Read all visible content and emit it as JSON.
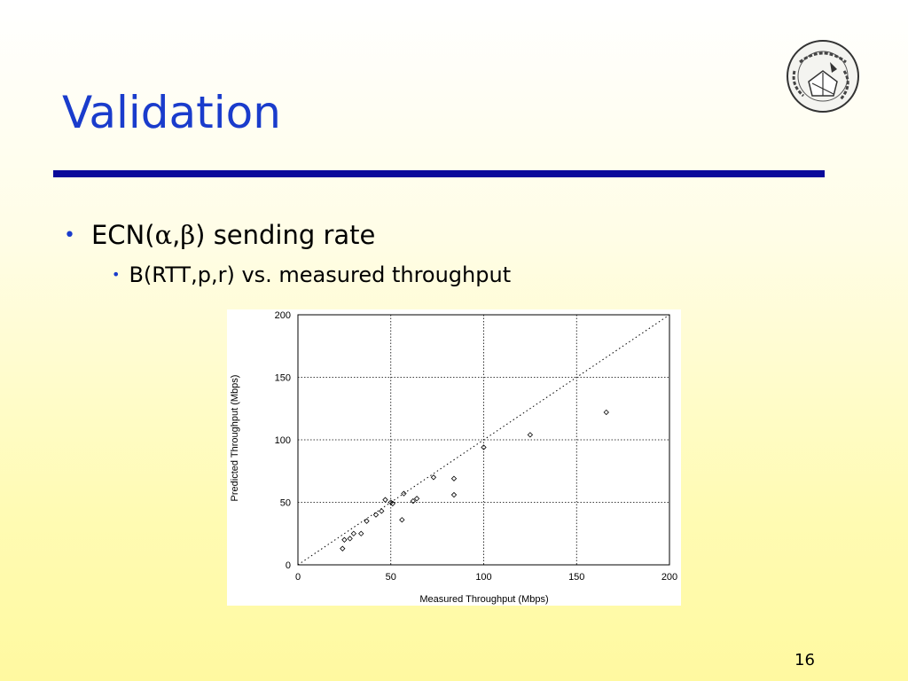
{
  "slide": {
    "title": "Validation",
    "bullet_1_prefix": "ECN(",
    "bullet_1_alpha": "α",
    "bullet_1_comma": ",",
    "bullet_1_beta": "β",
    "bullet_1_suffix": ") sending rate",
    "bullet_2": "B(RTT,p,r) vs. measured throughput",
    "page_number": "16"
  },
  "colors": {
    "title": "#1a3ccc",
    "rule": "#0a0a9a",
    "bullet": "#1a3ccc"
  },
  "logo": {
    "icon": "university-seal-icon"
  },
  "chart_data": {
    "type": "scatter",
    "title": "",
    "xlabel": "Measured Throughput (Mbps)",
    "ylabel": "Predicted Throughput (Mbps)",
    "xlim": [
      0,
      200
    ],
    "ylim": [
      0,
      200
    ],
    "xticks": [
      0,
      50,
      100,
      150,
      200
    ],
    "yticks": [
      0,
      50,
      100,
      150,
      200
    ],
    "grid": true,
    "reference_line": "y=x",
    "marker": "diamond",
    "points": [
      {
        "x": 24,
        "y": 13
      },
      {
        "x": 25,
        "y": 20
      },
      {
        "x": 28,
        "y": 21
      },
      {
        "x": 30,
        "y": 25
      },
      {
        "x": 34,
        "y": 25
      },
      {
        "x": 37,
        "y": 35
      },
      {
        "x": 42,
        "y": 40
      },
      {
        "x": 45,
        "y": 43
      },
      {
        "x": 47,
        "y": 52
      },
      {
        "x": 50,
        "y": 50
      },
      {
        "x": 51,
        "y": 49
      },
      {
        "x": 56,
        "y": 36
      },
      {
        "x": 57,
        "y": 57
      },
      {
        "x": 62,
        "y": 51
      },
      {
        "x": 64,
        "y": 53
      },
      {
        "x": 73,
        "y": 70
      },
      {
        "x": 84,
        "y": 56
      },
      {
        "x": 84,
        "y": 69
      },
      {
        "x": 100,
        "y": 94
      },
      {
        "x": 125,
        "y": 104
      },
      {
        "x": 166,
        "y": 122
      }
    ]
  }
}
